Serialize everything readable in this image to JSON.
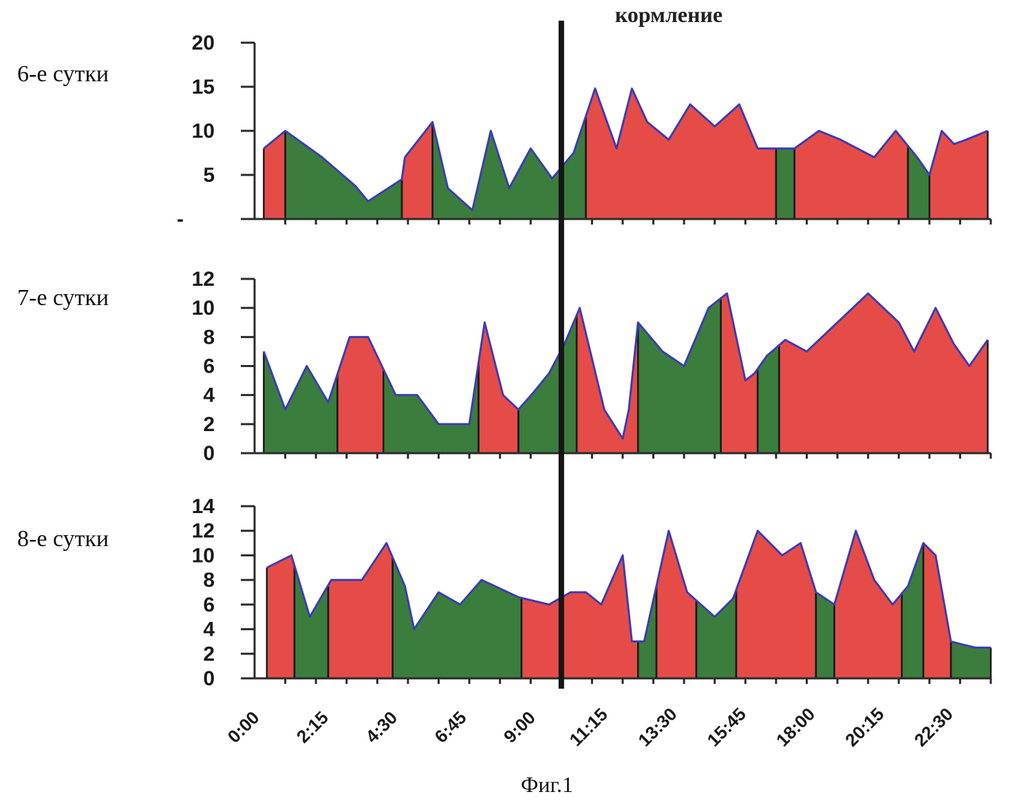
{
  "figure_caption": "Фиг.1",
  "marker": {
    "label": "кормление",
    "x": 10.0
  },
  "colors": {
    "red": "#e54c48",
    "green": "#3b7d3d",
    "outline": "#3c3cb4"
  },
  "x_tick_labels": [
    "0:00",
    "2:15",
    "4:30",
    "6:45",
    "9:00",
    "11:15",
    "13:30",
    "15:45",
    "18:00",
    "20:15",
    "22:30"
  ],
  "chart_data": [
    {
      "type": "area",
      "panel_label": "6-е сутки",
      "xlim": [
        0,
        24
      ],
      "ylim": [
        0,
        20
      ],
      "yticks": [
        5,
        10,
        15,
        20
      ],
      "ytick_labels": [
        "5",
        "10",
        "15",
        "20"
      ],
      "bottom_tick_label": "-",
      "x": [
        0.3,
        1.0,
        2.2,
        3.3,
        3.7,
        4.8,
        4.9,
        5.8,
        6.3,
        7.1,
        7.7,
        8.3,
        9.0,
        9.7,
        10.4,
        11.1,
        11.8,
        12.3,
        12.8,
        13.5,
        14.2,
        15.0,
        15.8,
        16.4,
        17.2,
        17.6,
        18.4,
        19.1,
        20.2,
        20.9,
        21.6,
        22.0,
        22.4,
        22.8,
        23.2,
        23.9
      ],
      "y": [
        8,
        10,
        7,
        3.7,
        2,
        4.5,
        7,
        11,
        3.5,
        1,
        10,
        3.5,
        8,
        4.6,
        7.5,
        14.8,
        8,
        14.8,
        11,
        9,
        13,
        10.5,
        13,
        8,
        8,
        8,
        10,
        9,
        7,
        10,
        7,
        5,
        10,
        8.5,
        9,
        10
      ],
      "segments": [
        {
          "from": 0.3,
          "to": 1.0,
          "color": "red"
        },
        {
          "from": 1.0,
          "to": 4.8,
          "color": "green"
        },
        {
          "from": 4.8,
          "to": 5.8,
          "color": "red"
        },
        {
          "from": 5.8,
          "to": 10.8,
          "color": "green"
        },
        {
          "from": 10.8,
          "to": 17.0,
          "color": "red"
        },
        {
          "from": 17.0,
          "to": 17.6,
          "color": "green"
        },
        {
          "from": 17.6,
          "to": 21.3,
          "color": "red"
        },
        {
          "from": 21.3,
          "to": 22.0,
          "color": "green"
        },
        {
          "from": 22.0,
          "to": 23.9,
          "color": "red"
        }
      ]
    },
    {
      "type": "area",
      "panel_label": "7-е сутки",
      "xlim": [
        0,
        24
      ],
      "ylim": [
        0,
        12
      ],
      "yticks": [
        0,
        2,
        4,
        6,
        8,
        10,
        12
      ],
      "ytick_labels": [
        "0",
        "2",
        "4",
        "6",
        "8",
        "10",
        "12"
      ],
      "x": [
        0.3,
        1.0,
        1.7,
        2.4,
        3.1,
        3.7,
        4.6,
        5.3,
        6.0,
        6.5,
        7.0,
        7.5,
        8.1,
        8.6,
        9.1,
        9.6,
        10.1,
        10.6,
        11.4,
        12.0,
        12.2,
        12.5,
        12.7,
        13.3,
        14.0,
        14.8,
        15.4,
        16.0,
        16.3,
        16.7,
        17.3,
        18.0,
        19.0,
        20.0,
        21.0,
        21.5,
        22.2,
        22.8,
        23.3,
        23.9
      ],
      "y": [
        7,
        3,
        6,
        3.5,
        8,
        8,
        4,
        4,
        2,
        2,
        2,
        9,
        4,
        3,
        4.2,
        5.5,
        7.5,
        10,
        3,
        1,
        3,
        9,
        8.5,
        7,
        6,
        10,
        11,
        5,
        5.5,
        6.7,
        7.8,
        7,
        9,
        11,
        9,
        7,
        10,
        7.5,
        6,
        7.8
      ],
      "segments": [
        {
          "from": 0.3,
          "to": 2.7,
          "color": "green"
        },
        {
          "from": 2.7,
          "to": 4.2,
          "color": "red"
        },
        {
          "from": 4.2,
          "to": 7.3,
          "color": "green"
        },
        {
          "from": 7.3,
          "to": 8.6,
          "color": "red"
        },
        {
          "from": 8.6,
          "to": 10.5,
          "color": "green"
        },
        {
          "from": 10.5,
          "to": 12.5,
          "color": "red"
        },
        {
          "from": 12.5,
          "to": 15.2,
          "color": "green"
        },
        {
          "from": 15.2,
          "to": 16.4,
          "color": "red"
        },
        {
          "from": 16.4,
          "to": 17.1,
          "color": "green"
        },
        {
          "from": 17.1,
          "to": 23.9,
          "color": "red"
        }
      ]
    },
    {
      "type": "area",
      "panel_label": "8-е сутки",
      "xlim": [
        0,
        24
      ],
      "ylim": [
        0,
        14
      ],
      "yticks": [
        0,
        2,
        4,
        6,
        8,
        10,
        12,
        14
      ],
      "ytick_labels": [
        "0",
        "2",
        "4",
        "6",
        "8",
        "10",
        "12",
        "14"
      ],
      "x": [
        0.4,
        1.2,
        1.8,
        2.5,
        3.5,
        4.3,
        4.9,
        5.2,
        6.0,
        6.7,
        7.4,
        8.6,
        9.6,
        10.3,
        10.8,
        11.3,
        12.0,
        12.3,
        12.7,
        13.5,
        14.1,
        15.0,
        15.6,
        16.4,
        17.2,
        17.8,
        18.3,
        18.9,
        19.6,
        20.2,
        20.8,
        21.3,
        21.8,
        22.2,
        22.7,
        23.0,
        23.5,
        24.0
      ],
      "y": [
        9,
        10,
        5,
        8,
        8,
        11,
        7.5,
        4,
        7,
        6,
        8,
        6.6,
        6,
        7,
        7,
        6,
        10,
        3,
        3,
        12,
        7,
        5,
        6.5,
        12,
        10,
        11,
        7,
        6,
        12,
        8,
        6,
        7.5,
        11,
        10,
        3,
        2.8,
        2.5,
        2.5
      ],
      "segments": [
        {
          "from": 0.4,
          "to": 1.3,
          "color": "red"
        },
        {
          "from": 1.3,
          "to": 2.4,
          "color": "green"
        },
        {
          "from": 2.4,
          "to": 4.5,
          "color": "red"
        },
        {
          "from": 4.5,
          "to": 8.7,
          "color": "green"
        },
        {
          "from": 8.7,
          "to": 12.5,
          "color": "red"
        },
        {
          "from": 12.5,
          "to": 13.1,
          "color": "green"
        },
        {
          "from": 13.1,
          "to": 14.4,
          "color": "red"
        },
        {
          "from": 14.4,
          "to": 15.7,
          "color": "green"
        },
        {
          "from": 15.7,
          "to": 18.3,
          "color": "red"
        },
        {
          "from": 18.3,
          "to": 18.9,
          "color": "green"
        },
        {
          "from": 18.9,
          "to": 21.1,
          "color": "red"
        },
        {
          "from": 21.1,
          "to": 21.8,
          "color": "green"
        },
        {
          "from": 21.8,
          "to": 22.7,
          "color": "red"
        },
        {
          "from": 22.7,
          "to": 24.0,
          "color": "green"
        }
      ]
    }
  ]
}
